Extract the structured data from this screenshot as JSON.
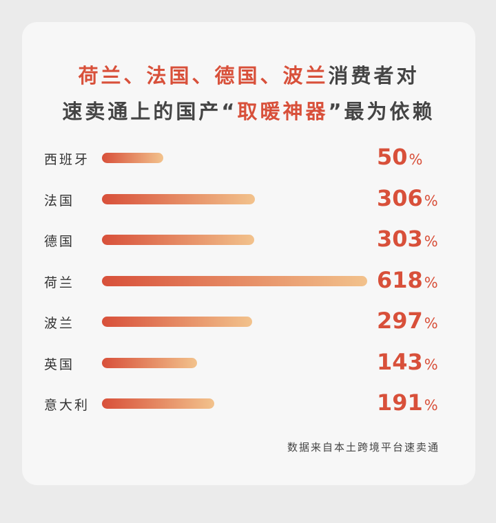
{
  "title": {
    "line1": [
      {
        "text": "荷兰、法国、德国、波兰",
        "highlight": true
      },
      {
        "text": "消费者对",
        "highlight": false
      }
    ],
    "line2": [
      {
        "text": "速卖通上的国产“",
        "highlight": false
      },
      {
        "text": "取暖神器",
        "highlight": true
      },
      {
        "text": "”最为依赖",
        "highlight": false
      }
    ]
  },
  "chart_data": {
    "type": "bar",
    "orientation": "horizontal",
    "categories": [
      "西班牙",
      "法国",
      "德国",
      "荷兰",
      "波兰",
      "英国",
      "意大利"
    ],
    "values": [
      50,
      306,
      303,
      618,
      297,
      143,
      191
    ],
    "unit": "%",
    "colors": {
      "accent": "#d8503a",
      "bar_start": "#d8503a",
      "bar_end": "#f2c28c"
    }
  },
  "source": "数据来自本土跨境平台速卖通"
}
